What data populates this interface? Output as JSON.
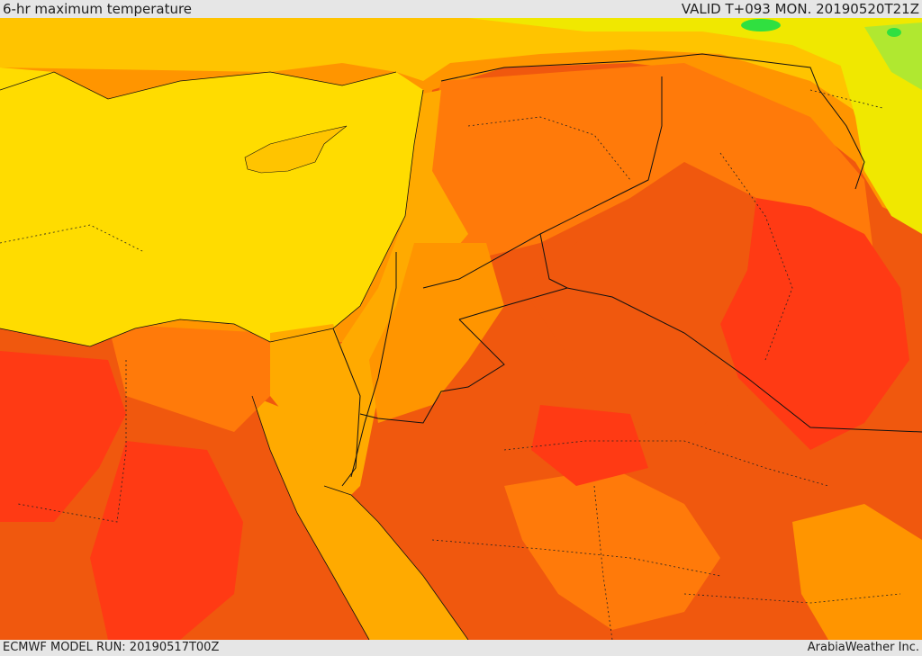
{
  "header": {
    "title": "6-hr maximum temperature",
    "valid_time": "VALID T+093 MON. 20190520T21Z"
  },
  "footer": {
    "model_run": "ECMWF MODEL RUN: 20190517T00Z",
    "credit": "ArabiaWeather Inc."
  },
  "map": {
    "colors": {
      "hottest": "#ff3a14",
      "very_hot": "#f0580e",
      "hot": "#ff7a0a",
      "warm": "#ff9500",
      "mild": "#ffaa00",
      "cool": "#ffc400",
      "sea": "#ffdc00",
      "cooler": "#f0e800",
      "coolest": "#b0e830",
      "green_patch": "#30e040",
      "border": "#111111"
    }
  }
}
